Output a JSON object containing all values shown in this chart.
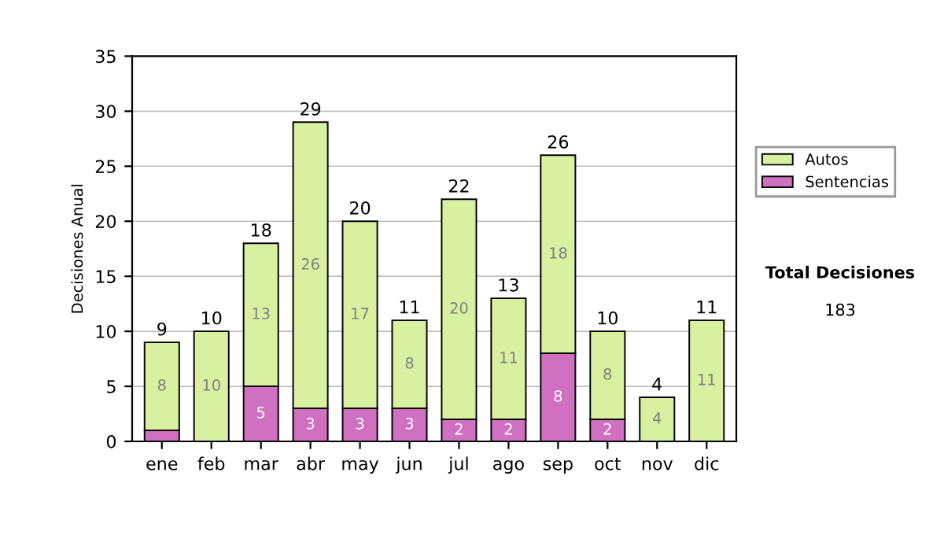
{
  "chart_data": {
    "type": "bar",
    "stacked": true,
    "ylabel": "Decisiones Anual",
    "categories": [
      "ene",
      "feb",
      "mar",
      "abr",
      "may",
      "jun",
      "jul",
      "ago",
      "sep",
      "oct",
      "nov",
      "dic"
    ],
    "series": [
      {
        "name": "Sentencias",
        "color": "#d070c0",
        "values": [
          1,
          0,
          5,
          3,
          3,
          3,
          2,
          2,
          8,
          2,
          0,
          0
        ],
        "value_labels": [
          null,
          null,
          "5",
          "3",
          "3",
          "3",
          "2",
          "2",
          "8",
          "2",
          null,
          null
        ]
      },
      {
        "name": "Autos",
        "color": "#d8f0a0",
        "values": [
          8,
          10,
          13,
          26,
          17,
          8,
          20,
          11,
          18,
          8,
          4,
          11
        ],
        "value_labels": [
          "8",
          "10",
          "13",
          "26",
          "17",
          "8",
          "20",
          "11",
          "18",
          "8",
          "4",
          "11"
        ]
      }
    ],
    "totals": [
      "9",
      "10",
      "18",
      "29",
      "20",
      "11",
      "22",
      "13",
      "26",
      "10",
      "4",
      "11"
    ],
    "ylim": [
      0,
      35
    ],
    "yticks": [
      0,
      5,
      10,
      15,
      20,
      25,
      30,
      35
    ],
    "grid": "y",
    "legend": "right",
    "annotations": [
      "Total Decisiones",
      "183"
    ]
  }
}
